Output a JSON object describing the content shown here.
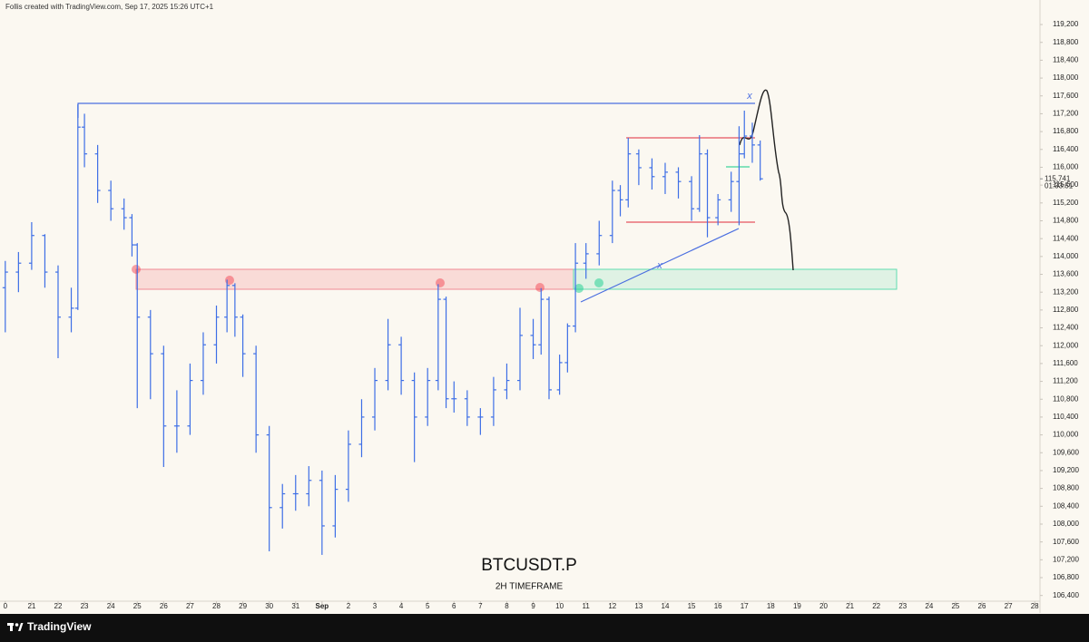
{
  "chart_data": {
    "type": "ohlc",
    "header": "Follis created with TradingView.com, Sep 17, 2025 15:26 UTC+1",
    "title": "BTCUSDT.P",
    "subtitle": "2H TIMEFRAME",
    "brand": "TradingView",
    "drawing_labels": [
      "x",
      "x"
    ],
    "last_price": {
      "value": 115741,
      "label": "115,741"
    },
    "countdown": "01:33:51",
    "color": "#3d6ee6",
    "xlim": [
      19.8,
      59.2
    ],
    "ylim": [
      106170,
      119750
    ],
    "xticks": [
      {
        "value": 20,
        "label": "0"
      },
      21,
      22,
      23,
      24,
      25,
      26,
      27,
      28,
      29,
      30,
      31,
      {
        "value": 32,
        "label": "Sep"
      },
      {
        "value": 33,
        "label": "2"
      },
      {
        "value": 34,
        "label": "3"
      },
      {
        "value": 35,
        "label": "4"
      },
      {
        "value": 36,
        "label": "5"
      },
      {
        "value": 37,
        "label": "6"
      },
      {
        "value": 38,
        "label": "7"
      },
      {
        "value": 39,
        "label": "8"
      },
      {
        "value": 40,
        "label": "9"
      },
      {
        "value": 41,
        "label": "10"
      },
      {
        "value": 42,
        "label": "11"
      },
      {
        "value": 43,
        "label": "12"
      },
      {
        "value": 44,
        "label": "13"
      },
      {
        "value": 45,
        "label": "14"
      },
      {
        "value": 46,
        "label": "15"
      },
      {
        "value": 47,
        "label": "16"
      },
      {
        "value": 48,
        "label": "17"
      },
      {
        "value": 49,
        "label": "18"
      },
      {
        "value": 50,
        "label": "19"
      },
      {
        "value": 51,
        "label": "20"
      },
      {
        "value": 52,
        "label": "21"
      },
      {
        "value": 53,
        "label": "22"
      },
      {
        "value": 54,
        "label": "23"
      },
      {
        "value": 55,
        "label": "24"
      },
      {
        "value": 56,
        "label": "25"
      },
      {
        "value": 57,
        "label": "26"
      },
      {
        "value": 58,
        "label": "27"
      },
      {
        "value": 59,
        "label": "28"
      }
    ],
    "yticks": [
      {
        "value": 106400,
        "label": "106,400"
      },
      {
        "value": 106800,
        "label": "106,800"
      },
      {
        "value": 107200,
        "label": "107,200"
      },
      {
        "value": 107600,
        "label": "107,600"
      },
      {
        "value": 108000,
        "label": "108,000"
      },
      {
        "value": 108400,
        "label": "108,400"
      },
      {
        "value": 108800,
        "label": "108,800"
      },
      {
        "value": 109200,
        "label": "109,200"
      },
      {
        "value": 109600,
        "label": "109,600"
      },
      {
        "value": 110000,
        "label": "110,000"
      },
      {
        "value": 110400,
        "label": "110,400"
      },
      {
        "value": 110800,
        "label": "110,800"
      },
      {
        "value": 111200,
        "label": "111,200"
      },
      {
        "value": 111600,
        "label": "111,600"
      },
      {
        "value": 112000,
        "label": "112,000"
      },
      {
        "value": 112400,
        "label": "112,400"
      },
      {
        "value": 112800,
        "label": "112,800"
      },
      {
        "value": 113200,
        "label": "113,200"
      },
      {
        "value": 113600,
        "label": "113,600"
      },
      {
        "value": 114000,
        "label": "114,000"
      },
      {
        "value": 114400,
        "label": "114,400"
      },
      {
        "value": 114800,
        "label": "114,800"
      },
      {
        "value": 115200,
        "label": "115,200"
      },
      {
        "value": 115600,
        "label": "115,600"
      },
      {
        "value": 116000,
        "label": "116,000"
      },
      {
        "value": 116400,
        "label": "116,400"
      },
      {
        "value": 116800,
        "label": "116,800"
      },
      {
        "value": 117200,
        "label": "117,200"
      },
      {
        "value": 117600,
        "label": "117,600"
      },
      {
        "value": 118000,
        "label": "118,000"
      },
      {
        "value": 118400,
        "label": "118,400"
      },
      {
        "value": 118800,
        "label": "118,800"
      },
      {
        "value": 119200,
        "label": "119,200"
      }
    ],
    "x": [
      20.0,
      20.5,
      21.0,
      21.5,
      22.0,
      22.5,
      22.75,
      23.0,
      23.5,
      24.0,
      24.5,
      24.8,
      25.0,
      25.5,
      26.0,
      26.5,
      27.0,
      27.5,
      28.0,
      28.4,
      28.7,
      29.0,
      29.5,
      30.0,
      30.5,
      31.0,
      31.5,
      32.0,
      32.5,
      33.0,
      33.5,
      34.0,
      34.5,
      35.0,
      35.5,
      36.0,
      36.4,
      36.7,
      37.0,
      37.5,
      38.0,
      38.5,
      39.0,
      39.5,
      40.0,
      40.3,
      40.6,
      41.0,
      41.3,
      41.6,
      42.0,
      42.5,
      43.0,
      43.3,
      43.6,
      44.0,
      44.5,
      45.0,
      45.5,
      46.0,
      46.3,
      46.6,
      47.0,
      47.5,
      47.8,
      48.0,
      48.3,
      48.6
    ],
    "open": [
      113300,
      113650,
      113850,
      114470,
      113650,
      112640,
      112840,
      116900,
      116300,
      115480,
      115070,
      114870,
      114260,
      112640,
      111820,
      110200,
      110200,
      111220,
      112020,
      112640,
      113350,
      112640,
      111820,
      110000,
      108370,
      108680,
      108680,
      108980,
      107960,
      108780,
      109790,
      110400,
      111220,
      112020,
      111220,
      110400,
      111220,
      113040,
      110810,
      110810,
      110400,
      110400,
      111010,
      111220,
      112230,
      112020,
      113040,
      111010,
      111620,
      112440,
      113850,
      114060,
      114470,
      115480,
      115270,
      116300,
      115990,
      115790,
      115890,
      115680,
      115070,
      116300,
      114870,
      115270,
      115680,
      116300,
      116700,
      116500
    ],
    "high": [
      113900,
      114100,
      114770,
      114500,
      113800,
      113300,
      117410,
      117200,
      116500,
      115700,
      115300,
      114950,
      114300,
      112800,
      112000,
      111000,
      111600,
      112300,
      112900,
      113480,
      113400,
      112700,
      112000,
      110200,
      108900,
      109100,
      109300,
      109200,
      109100,
      110100,
      110800,
      111500,
      112600,
      112200,
      111400,
      111500,
      113380,
      113100,
      111200,
      111000,
      110600,
      111300,
      111600,
      112850,
      112600,
      113290,
      113100,
      111800,
      112500,
      114300,
      114300,
      114800,
      115700,
      115600,
      116660,
      116400,
      116200,
      116100,
      116000,
      115800,
      116720,
      116400,
      115400,
      115900,
      116920,
      117270,
      117000,
      116600
    ],
    "low": [
      112300,
      113200,
      113700,
      113300,
      111720,
      112300,
      112800,
      116000,
      115200,
      114800,
      114600,
      114000,
      110600,
      110800,
      109280,
      109600,
      110000,
      110900,
      111600,
      112300,
      112200,
      111300,
      109600,
      107390,
      107900,
      108300,
      108400,
      107310,
      107700,
      108500,
      109500,
      110100,
      111000,
      110900,
      109390,
      110200,
      111000,
      110600,
      110500,
      110200,
      110000,
      110200,
      110800,
      111000,
      111700,
      111800,
      110800,
      110900,
      111400,
      112300,
      113500,
      113800,
      114300,
      114900,
      115100,
      115600,
      115500,
      115400,
      115300,
      114800,
      115000,
      114430,
      114700,
      115000,
      114700,
      116200,
      116100,
      115700
    ],
    "close": [
      113650,
      113850,
      114470,
      113650,
      112640,
      112840,
      116900,
      116300,
      115480,
      115070,
      114870,
      114260,
      112640,
      111820,
      110200,
      110200,
      111220,
      112020,
      112640,
      113350,
      112640,
      111820,
      110000,
      108370,
      108680,
      108680,
      108980,
      107960,
      108780,
      109790,
      110400,
      111220,
      112020,
      111220,
      110400,
      111220,
      113040,
      110810,
      110810,
      110400,
      110400,
      111010,
      111220,
      112230,
      112020,
      113040,
      111010,
      111620,
      112440,
      113850,
      114060,
      114470,
      115480,
      115270,
      116300,
      115990,
      115790,
      115890,
      115680,
      115070,
      116300,
      114870,
      115270,
      115680,
      116300,
      116700,
      116500,
      115741
    ]
  }
}
